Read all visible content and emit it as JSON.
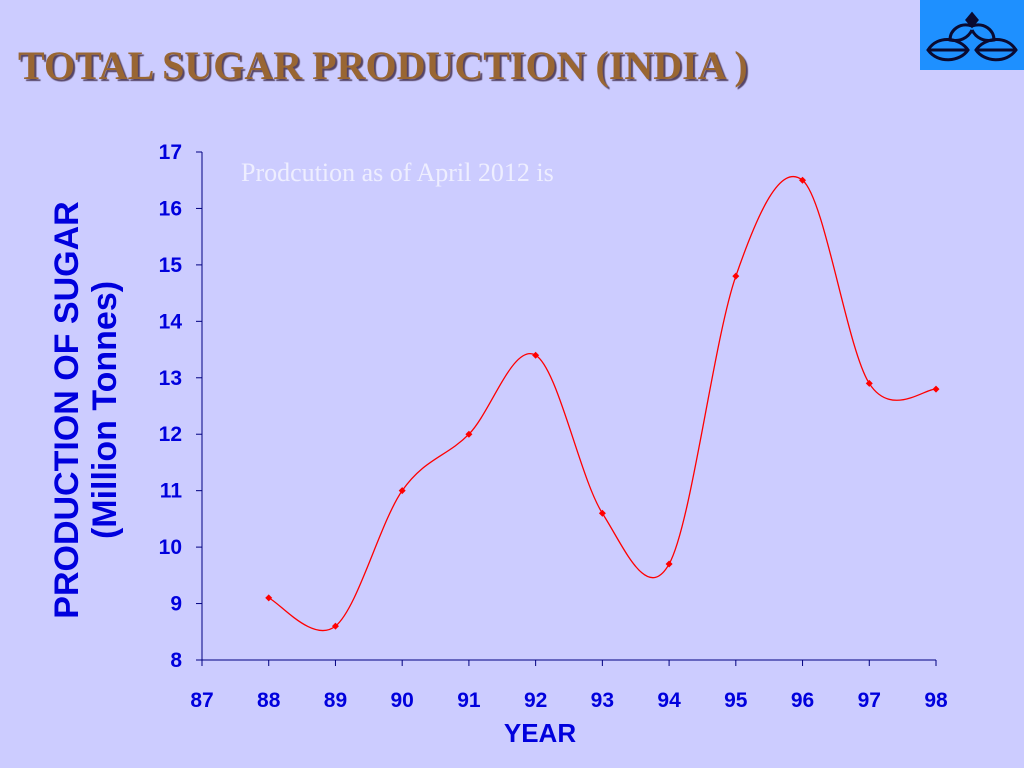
{
  "slide": {
    "title": "TOTAL SUGAR PRODUCTION (INDIA )"
  },
  "colors": {
    "background": "#ccccff",
    "title": "#996633",
    "axis_text": "#0000dd",
    "series_line": "#ff0000",
    "logo_background": "#1e90ff"
  },
  "logo": {
    "icon": "leaf-emblem-icon"
  },
  "chart_data": {
    "type": "line",
    "title": "",
    "ylabel_lines": [
      "PRODUCTION OF SUGAR",
      "(Million Tonnes)"
    ],
    "xlabel": "YEAR",
    "annotation": "Prodcution as of April 2012 is",
    "xlim": [
      87,
      98
    ],
    "ylim": [
      8,
      17
    ],
    "x_ticks": [
      87,
      88,
      89,
      90,
      91,
      92,
      93,
      94,
      95,
      96,
      97,
      98
    ],
    "y_ticks": [
      8,
      9,
      10,
      11,
      12,
      13,
      14,
      15,
      16,
      17
    ],
    "smooth": true,
    "grid": false,
    "series": [
      {
        "x": [
          88,
          89,
          90,
          91,
          92,
          93,
          94,
          95,
          96,
          97,
          98
        ],
        "values": [
          9.1,
          8.6,
          11.0,
          12.0,
          13.4,
          10.6,
          9.7,
          14.8,
          16.5,
          12.9,
          12.8
        ]
      }
    ]
  }
}
